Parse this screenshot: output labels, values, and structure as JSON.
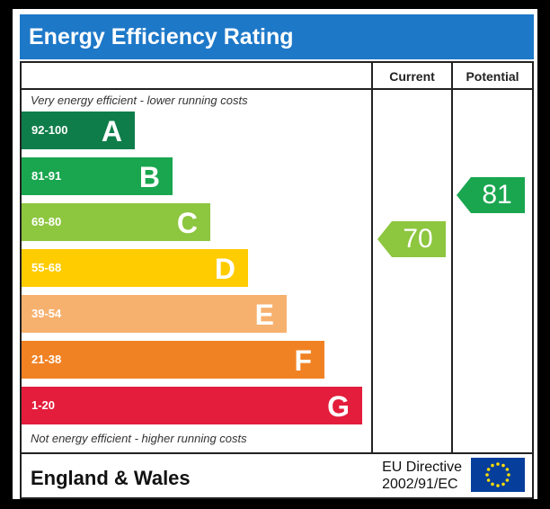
{
  "title": "Energy Efficiency Rating",
  "columns": {
    "current": "Current",
    "potential": "Potential"
  },
  "top_caption": "Very energy efficient - lower running costs",
  "bottom_caption": "Not energy efficient - higher running costs",
  "bands": [
    {
      "range": "92-100",
      "letter": "A",
      "color": "#0f7d4a"
    },
    {
      "range": "81-91",
      "letter": "B",
      "color": "#1aa64f"
    },
    {
      "range": "69-80",
      "letter": "C",
      "color": "#8dc63f"
    },
    {
      "range": "55-68",
      "letter": "D",
      "color": "#ffcc00"
    },
    {
      "range": "39-54",
      "letter": "E",
      "color": "#f7b16e"
    },
    {
      "range": "21-38",
      "letter": "F",
      "color": "#f08224"
    },
    {
      "range": "1-20",
      "letter": "G",
      "color": "#e31d3b"
    }
  ],
  "current": {
    "value": "70",
    "band": "C",
    "color": "#8dc63f"
  },
  "potential": {
    "value": "81",
    "band": "B",
    "color": "#1aa64f"
  },
  "footer": {
    "region": "England & Wales",
    "directive_line1": "EU Directive",
    "directive_line2": "2002/91/EC",
    "flag_icon": "eu-flag-icon"
  }
}
